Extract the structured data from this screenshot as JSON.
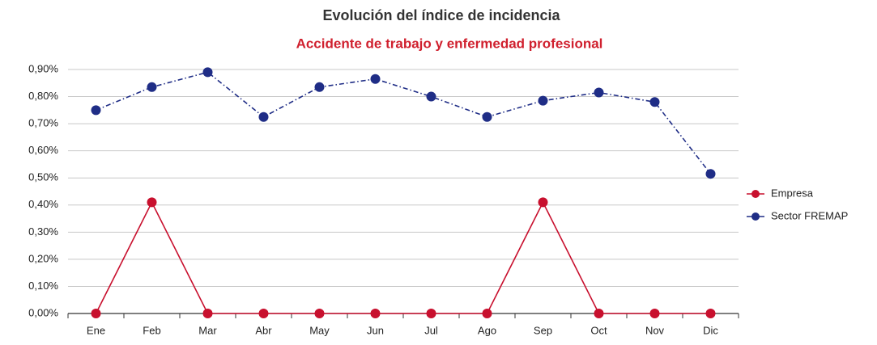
{
  "chart_data": {
    "type": "line",
    "title": "Evolución del índice de incidencia",
    "subtitle": "Accidente de trabajo y enfermedad profesional",
    "categories": [
      "Ene",
      "Feb",
      "Mar",
      "Abr",
      "May",
      "Jun",
      "Jul",
      "Ago",
      "Sep",
      "Oct",
      "Nov",
      "Dic"
    ],
    "series": [
      {
        "name": "Empresa",
        "color": "#c8102e",
        "line_style": "solid",
        "values": [
          0,
          0.41,
          0,
          0,
          0,
          0,
          0,
          0,
          0.41,
          0,
          0,
          0
        ]
      },
      {
        "name": "Sector FREMAP",
        "color": "#1f2d86",
        "line_style": "dashdot",
        "values": [
          0.75,
          0.835,
          0.89,
          0.725,
          0.835,
          0.865,
          0.8,
          0.725,
          0.785,
          0.815,
          0.78,
          0.515
        ]
      }
    ],
    "ylim": [
      0,
      0.9
    ],
    "yticks": [
      {
        "value": 0,
        "label": "0,00%"
      },
      {
        "value": 0.1,
        "label": "0,10%"
      },
      {
        "value": 0.2,
        "label": "0,20%"
      },
      {
        "value": 0.3,
        "label": "0,30%"
      },
      {
        "value": 0.4,
        "label": "0,40%"
      },
      {
        "value": 0.5,
        "label": "0,50%"
      },
      {
        "value": 0.6,
        "label": "0,60%"
      },
      {
        "value": 0.7,
        "label": "0,70%"
      },
      {
        "value": 0.8,
        "label": "0,80%"
      },
      {
        "value": 0.9,
        "label": "0,90%"
      }
    ],
    "grid": true,
    "legend": "right"
  }
}
